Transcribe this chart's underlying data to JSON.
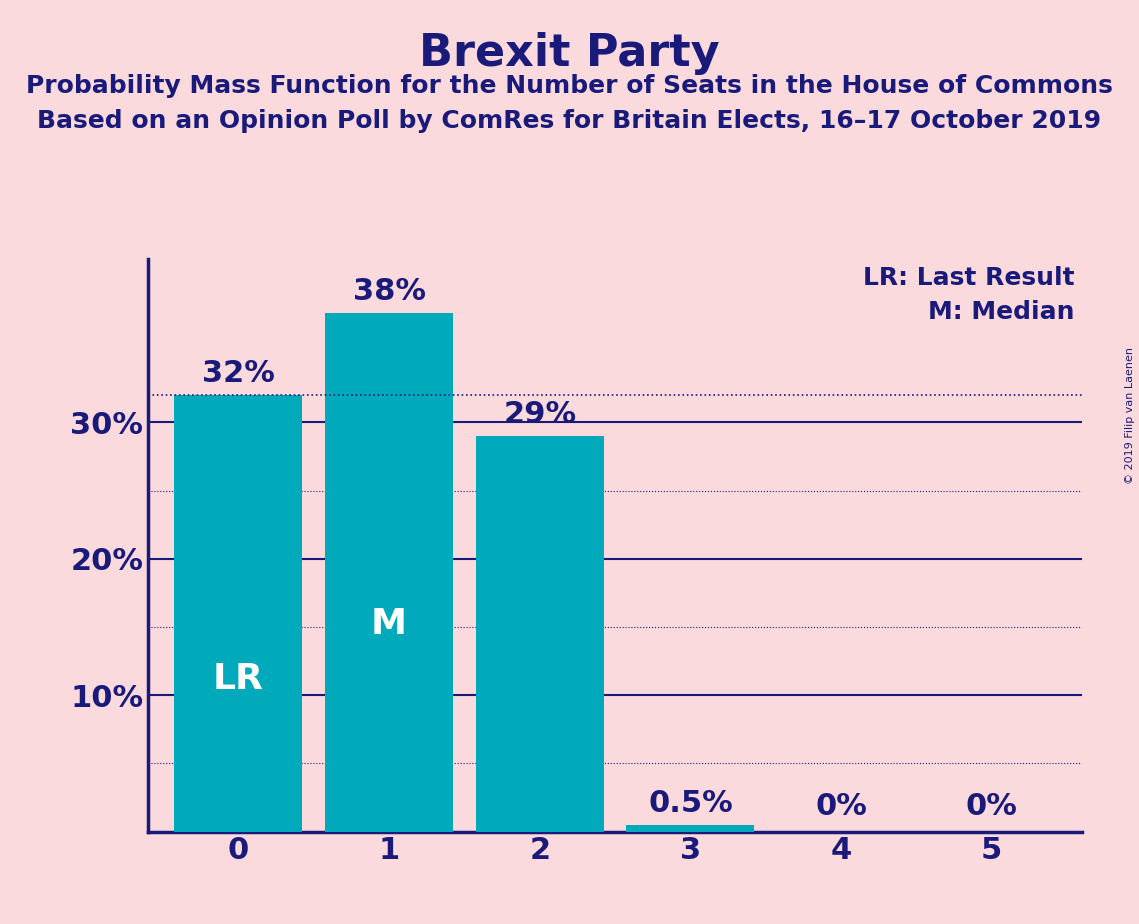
{
  "title": "Brexit Party",
  "subtitle1": "Probability Mass Function for the Number of Seats in the House of Commons",
  "subtitle2": "Based on an Opinion Poll by ComRes for Britain Elects, 16–17 October 2019",
  "copyright": "© 2019 Filip van Laenen",
  "categories": [
    0,
    1,
    2,
    3,
    4,
    5
  ],
  "values": [
    32,
    38,
    29,
    0.5,
    0,
    0
  ],
  "bar_color": "#00AABB",
  "background_color": "#FADADD",
  "title_color": "#1a1a7a",
  "axis_color": "#1a1a7a",
  "label_color": "#1a1a7a",
  "bar_label_color_outside": "#1a1a7a",
  "lr_bar": 0,
  "median_bar": 1,
  "lr_label": "LR",
  "median_label": "M",
  "legend_lr": "LR: Last Result",
  "legend_m": "M: Median",
  "dotted_line_y": 32,
  "solid_gridlines": [
    10,
    20,
    30
  ],
  "dotted_gridlines": [
    5,
    15,
    25
  ],
  "ylim": [
    0,
    42
  ],
  "yticks": [
    10,
    20,
    30
  ],
  "title_fontsize": 32,
  "subtitle_fontsize": 18,
  "tick_fontsize": 22,
  "bar_label_fontsize": 22,
  "inside_label_fontsize": 26,
  "legend_fontsize": 18
}
